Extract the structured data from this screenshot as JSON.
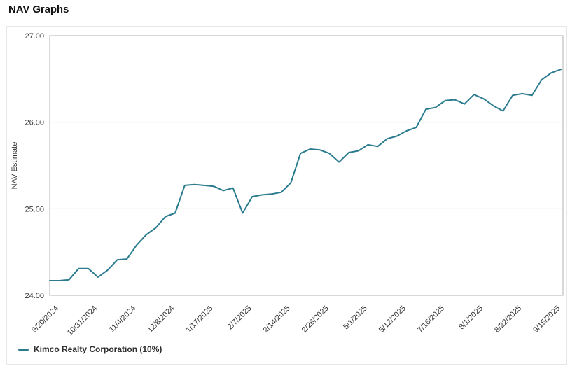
{
  "page": {
    "title": "NAV Graphs"
  },
  "colors": {
    "line": "#2a7b8e",
    "grid": "#d8d8d8",
    "plot_border": "#b0b0b0",
    "panel_border": "#e7e7e7",
    "label_text": "#333333"
  },
  "chart_data": {
    "type": "line",
    "title": "NAV Graphs",
    "xlabel": "",
    "ylabel": "NAV Estimate",
    "ylim": [
      24.0,
      27.0
    ],
    "y_ticks": [
      "27.00",
      "26.00",
      "25.00",
      "24.00"
    ],
    "grid": "horizontal",
    "legend_position": "bottom-left",
    "categories": [
      "9/20/2024",
      "10/31/2024",
      "11/4/2024",
      "12/8/2024",
      "1/17/2025",
      "2/7/2025",
      "2/14/2025",
      "2/28/2025",
      "5/1/2025",
      "5/12/2025",
      "7/16/2025",
      "8/1/2025",
      "8/22/2025",
      "9/15/2025"
    ],
    "label_every": 4,
    "series": [
      {
        "name": "Kimco Realty Corporation (10%)",
        "color": "#2a7b8e",
        "values": [
          24.17,
          24.17,
          24.18,
          24.31,
          24.31,
          24.21,
          24.29,
          24.41,
          24.42,
          24.58,
          24.7,
          24.78,
          24.91,
          24.95,
          25.27,
          25.28,
          25.27,
          25.26,
          25.21,
          25.24,
          24.95,
          25.14,
          25.16,
          25.17,
          25.19,
          25.3,
          25.64,
          25.69,
          25.68,
          25.64,
          25.54,
          25.65,
          25.67,
          25.74,
          25.72,
          25.81,
          25.84,
          25.9,
          25.94,
          26.15,
          26.17,
          26.25,
          26.26,
          26.21,
          26.32,
          26.27,
          26.19,
          26.13,
          26.31,
          26.33,
          26.31,
          26.49,
          26.57,
          26.61
        ]
      }
    ]
  }
}
